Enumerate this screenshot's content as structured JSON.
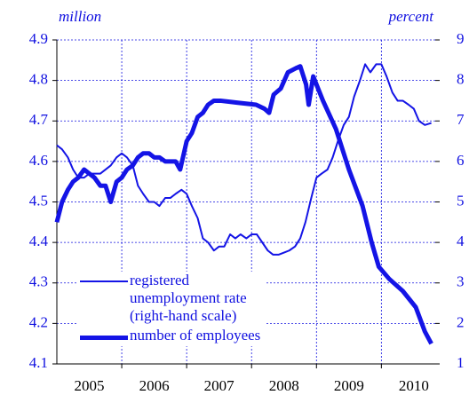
{
  "chart_data": {
    "type": "line",
    "ylabel": "million",
    "y2label": "percent",
    "xlim": [
      2005,
      2010.83
    ],
    "xticks": [
      {
        "value": 2005.5,
        "label": "2005"
      },
      {
        "value": 2006.5,
        "label": "2006"
      },
      {
        "value": 2007.5,
        "label": "2007"
      },
      {
        "value": 2008.5,
        "label": "2008"
      },
      {
        "value": 2009.5,
        "label": "2009"
      },
      {
        "value": 2010.5,
        "label": "2010"
      }
    ],
    "xgrid": [
      2006,
      2007,
      2008,
      2009,
      2010
    ],
    "ylim": [
      4.1,
      4.9
    ],
    "yticks": [
      4.1,
      4.2,
      4.3,
      4.4,
      4.5,
      4.6,
      4.7,
      4.8,
      4.9
    ],
    "y2lim": [
      1,
      9
    ],
    "y2ticks": [
      1,
      2,
      3,
      4,
      5,
      6,
      7,
      8,
      9
    ],
    "grid": true,
    "legend": "lower left",
    "series": [
      {
        "name": "registered unemployment rate (right-hand scale)",
        "color": "#1414e6",
        "width": 2,
        "axis": "y2",
        "x": [
          2005.0,
          2005.08,
          2005.17,
          2005.25,
          2005.33,
          2005.42,
          2005.5,
          2005.58,
          2005.67,
          2005.83,
          2005.92,
          2006.0,
          2006.08,
          2006.17,
          2006.25,
          2006.33,
          2006.42,
          2006.5,
          2006.58,
          2006.67,
          2006.75,
          2006.83,
          2006.92,
          2007.0,
          2007.08,
          2007.17,
          2007.25,
          2007.33,
          2007.42,
          2007.5,
          2007.58,
          2007.67,
          2007.75,
          2007.83,
          2007.92,
          2008.0,
          2008.08,
          2008.25,
          2008.33,
          2008.42,
          2008.5,
          2008.58,
          2008.67,
          2008.75,
          2008.83,
          2008.92,
          2009.0,
          2009.08,
          2009.17,
          2009.25,
          2009.33,
          2009.42,
          2009.5,
          2009.58,
          2009.67,
          2009.75,
          2009.83,
          2009.92,
          2010.0,
          2010.08,
          2010.17,
          2010.25,
          2010.33,
          2010.42,
          2010.5,
          2010.58,
          2010.67,
          2010.77
        ],
        "values": [
          6.4,
          6.3,
          6.1,
          5.8,
          5.6,
          5.6,
          5.7,
          5.7,
          5.7,
          5.9,
          6.1,
          6.2,
          6.1,
          5.9,
          5.4,
          5.2,
          5.0,
          5.0,
          4.9,
          5.1,
          5.1,
          5.2,
          5.3,
          5.2,
          4.9,
          4.6,
          4.1,
          4.0,
          3.8,
          3.9,
          3.9,
          4.2,
          4.1,
          4.2,
          4.1,
          4.2,
          4.2,
          3.8,
          3.7,
          3.7,
          3.75,
          3.8,
          3.9,
          4.1,
          4.5,
          5.1,
          5.6,
          5.7,
          5.8,
          6.1,
          6.5,
          6.9,
          7.1,
          7.6,
          8.0,
          8.4,
          8.2,
          8.4,
          8.4,
          8.1,
          7.7,
          7.5,
          7.5,
          7.4,
          7.3,
          7.0,
          6.9,
          6.95
        ]
      },
      {
        "name": "number of employees",
        "color": "#1414e6",
        "width": 5,
        "x": [
          2005.0,
          2005.08,
          2005.17,
          2005.25,
          2005.33,
          2005.42,
          2005.5,
          2005.58,
          2005.67,
          2005.75,
          2005.83,
          2005.92,
          2006.0,
          2006.08,
          2006.17,
          2006.25,
          2006.33,
          2006.42,
          2006.5,
          2006.58,
          2006.67,
          2006.75,
          2006.83,
          2006.9,
          2007.0,
          2007.08,
          2007.17,
          2007.25,
          2007.33,
          2007.42,
          2007.52,
          2007.79,
          2008.07,
          2008.2,
          2008.27,
          2008.34,
          2008.45,
          2008.56,
          2008.68,
          2008.75,
          2008.84,
          2008.88,
          2008.95,
          2009.1,
          2009.3,
          2009.5,
          2009.71,
          2009.85,
          2009.96,
          2010.12,
          2010.33,
          2010.53,
          2010.67,
          2010.77
        ],
        "values": [
          4.45,
          4.5,
          4.53,
          4.55,
          4.56,
          4.58,
          4.57,
          4.56,
          4.54,
          4.54,
          4.5,
          4.55,
          4.56,
          4.58,
          4.59,
          4.61,
          4.62,
          4.62,
          4.61,
          4.61,
          4.6,
          4.6,
          4.6,
          4.58,
          4.65,
          4.67,
          4.71,
          4.72,
          4.74,
          4.75,
          4.75,
          4.745,
          4.74,
          4.73,
          4.72,
          4.765,
          4.78,
          4.82,
          4.83,
          4.835,
          4.79,
          4.74,
          4.81,
          4.75,
          4.68,
          4.58,
          4.49,
          4.4,
          4.34,
          4.31,
          4.28,
          4.24,
          4.18,
          4.15
        ]
      }
    ]
  }
}
